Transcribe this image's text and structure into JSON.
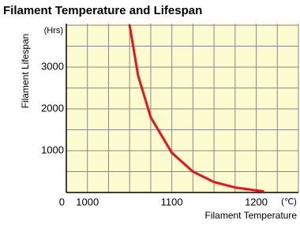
{
  "chart_data": {
    "type": "line",
    "title": "Filament Temperature and Lifespan",
    "x_label": "Filament Temperature",
    "y_label": "Filament Lifespan",
    "x_unit": "(℃)",
    "y_unit": "(Hrs)",
    "x": [
      1050,
      1060,
      1075,
      1100,
      1125,
      1150,
      1175,
      1200,
      1208
    ],
    "series": [
      {
        "name": "Lifespan",
        "color": "#e8141c",
        "values": [
          4000,
          2800,
          1800,
          950,
          500,
          250,
          120,
          50,
          30
        ]
      }
    ],
    "xlim": [
      975,
      1250
    ],
    "ylim": [
      0,
      4000
    ],
    "xticks": [
      1000,
      1100,
      1200
    ],
    "yticks": [
      0,
      1000,
      2000,
      3000
    ],
    "xgrid": [
      1000,
      1025,
      1050,
      1075,
      1100,
      1125,
      1150,
      1175,
      1200,
      1225,
      1250
    ],
    "ygrid": [
      500,
      1000,
      1500,
      2000,
      2500,
      3000,
      3500,
      4000
    ],
    "grid": true
  }
}
